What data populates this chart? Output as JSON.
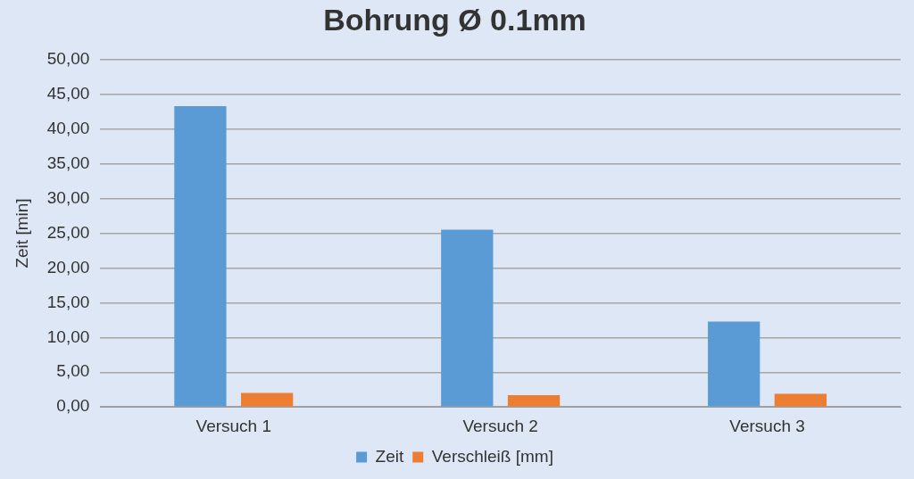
{
  "chart_data": {
    "type": "bar",
    "title": "Bohrung Ø 0.1mm",
    "ylabel": "Zeit [min]",
    "categories": [
      "Versuch 1",
      "Versuch 2",
      "Versuch 3"
    ],
    "series": [
      {
        "name": "Zeit",
        "color": "#5b9bd5",
        "values": [
          43.3,
          25.5,
          12.3
        ]
      },
      {
        "name": "Verschleiß [mm]",
        "color": "#ed7d31",
        "values": [
          2.0,
          1.7,
          1.9
        ]
      }
    ],
    "ylim": [
      0,
      50
    ],
    "yticks": [
      {
        "value": 0,
        "label": "0,00"
      },
      {
        "value": 5,
        "label": "5,00"
      },
      {
        "value": 10,
        "label": "10,00"
      },
      {
        "value": 15,
        "label": "15,00"
      },
      {
        "value": 20,
        "label": "20,00"
      },
      {
        "value": 25,
        "label": "25,00"
      },
      {
        "value": 30,
        "label": "30,00"
      },
      {
        "value": 35,
        "label": "35,00"
      },
      {
        "value": 40,
        "label": "40,00"
      },
      {
        "value": 45,
        "label": "45,00"
      },
      {
        "value": 50,
        "label": "50,00"
      }
    ],
    "grid": "y",
    "legend": "bottom"
  }
}
